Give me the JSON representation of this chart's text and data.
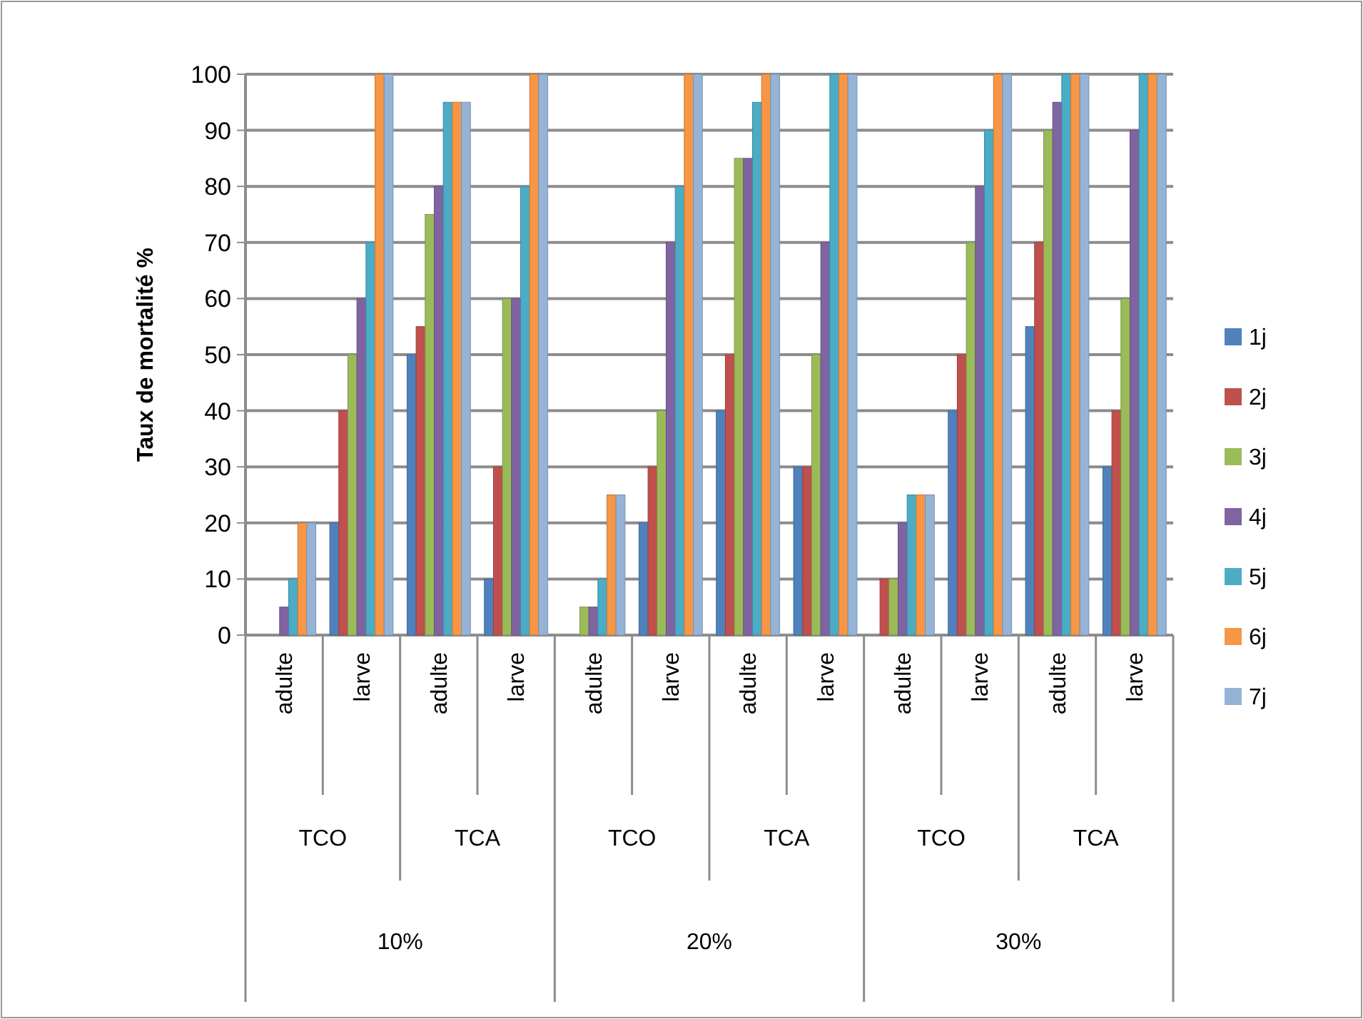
{
  "chart_data": {
    "type": "bar",
    "ylabel": "Taux  de mortalité %",
    "categories": [
      "adulte",
      "larve",
      "adulte",
      "larve",
      "adulte",
      "larve",
      "adulte",
      "larve",
      "adulte",
      "larve",
      "adulte",
      "larve"
    ],
    "annotations": [
      "TCO",
      "TCA",
      "TCO",
      "TCA",
      "TCO",
      "TCA",
      "10%",
      "20%",
      "30%"
    ],
    "series": [
      {
        "name": "1j",
        "color": "#4f81bd",
        "values": [
          0,
          20,
          50,
          10,
          0,
          20,
          40,
          30,
          0,
          40,
          55,
          30
        ]
      },
      {
        "name": "2j",
        "color": "#c0504d",
        "values": [
          0,
          40,
          55,
          30,
          0,
          30,
          50,
          30,
          10,
          50,
          70,
          40
        ]
      },
      {
        "name": "3j",
        "color": "#9bbb59",
        "values": [
          0,
          50,
          75,
          60,
          5,
          40,
          85,
          50,
          10,
          70,
          90,
          60
        ]
      },
      {
        "name": "4j",
        "color": "#8064a2",
        "values": [
          5,
          60,
          80,
          60,
          5,
          70,
          85,
          70,
          20,
          80,
          95,
          90
        ]
      },
      {
        "name": "5j",
        "color": "#4bacc6",
        "values": [
          10,
          70,
          95,
          80,
          10,
          80,
          95,
          100,
          25,
          90,
          100,
          100
        ]
      },
      {
        "name": "6j",
        "color": "#f79646",
        "values": [
          20,
          100,
          95,
          100,
          25,
          100,
          100,
          100,
          25,
          100,
          100,
          100
        ]
      },
      {
        "name": "7j",
        "color": "#95b3d7",
        "values": [
          20,
          100,
          95,
          100,
          25,
          100,
          100,
          100,
          25,
          100,
          100,
          100
        ]
      }
    ],
    "ylim": [
      0,
      100
    ],
    "yticks": [
      0,
      10,
      20,
      30,
      40,
      50,
      60,
      70,
      80,
      90,
      100
    ],
    "grid": "y",
    "legend": "right"
  }
}
